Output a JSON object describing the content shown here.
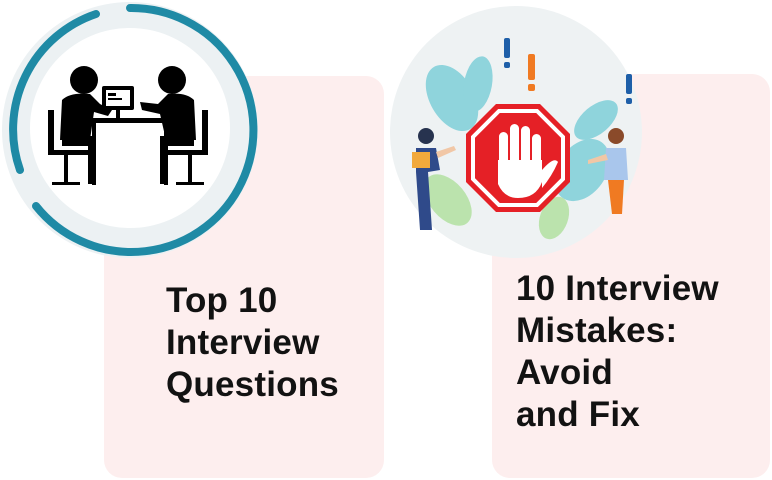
{
  "cards": [
    {
      "title_lines": [
        "Top 10",
        "Interview",
        "Questions"
      ],
      "illustration": "interview-table-icon"
    },
    {
      "title_lines": [
        "10 Interview",
        "Mistakes:",
        "Avoid",
        "and Fix"
      ],
      "illustration": "stop-hand-icon"
    }
  ],
  "colors": {
    "card_bg": "#fdeeee",
    "ring_teal": "#1f8aa5",
    "stop_red": "#e52026",
    "exclaim_blue": "#1e5fa8",
    "exclaim_orange": "#f07a22",
    "text": "#121212"
  }
}
